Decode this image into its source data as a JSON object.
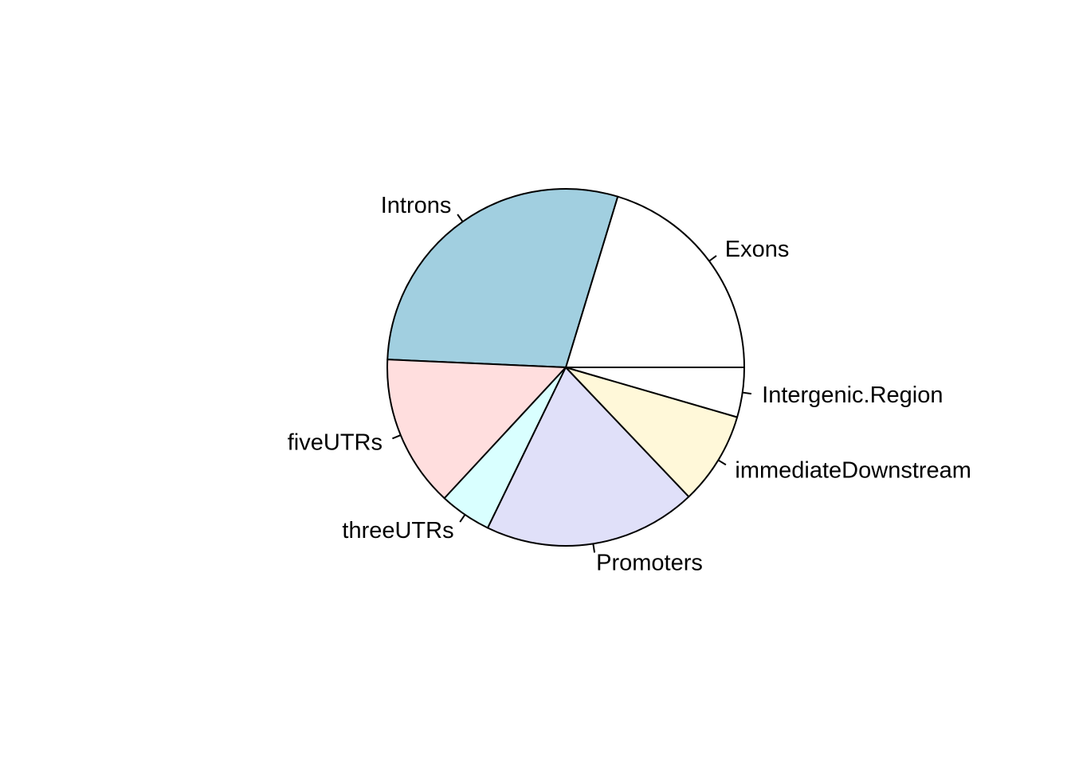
{
  "chart_data": {
    "type": "pie",
    "start_angle_deg": 0,
    "direction": "counterclockwise",
    "slices": [
      {
        "label": "Exons",
        "value": 20.3,
        "color": "#FFFFFF"
      },
      {
        "label": "Introns",
        "value": 29.0,
        "color": "#A1CFE0"
      },
      {
        "label": "fiveUTRs",
        "value": 13.8,
        "color": "#FFDEDE"
      },
      {
        "label": "threeUTRs",
        "value": 4.7,
        "color": "#D9FFFF"
      },
      {
        "label": "Promoters",
        "value": 19.3,
        "color": "#E0E0F9"
      },
      {
        "label": "immediateDownstream",
        "value": 8.4,
        "color": "#FFF8D9"
      },
      {
        "label": "Intergenic.Region",
        "value": 4.5,
        "color": "#FFFFFF"
      }
    ],
    "grid": false,
    "legend": "none"
  }
}
